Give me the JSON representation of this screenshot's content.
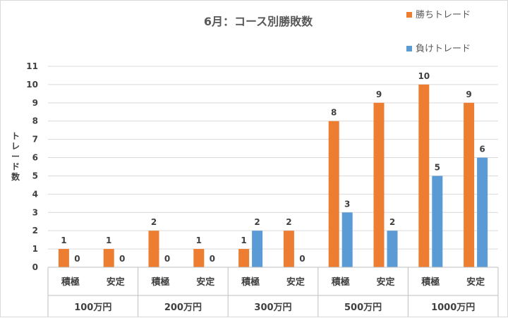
{
  "chart_data": {
    "type": "bar",
    "title": "6月：コース別勝敗数",
    "ylabel": "トレード数",
    "xlabel": "",
    "ylim": [
      0,
      11
    ],
    "yticks": [
      0,
      1,
      2,
      3,
      4,
      5,
      6,
      7,
      8,
      9,
      10,
      11
    ],
    "grid": true,
    "legend_position": "top-right",
    "categories": [
      "積極",
      "安定",
      "積極",
      "安定",
      "積極",
      "安定",
      "積極",
      "安定",
      "積極",
      "安定"
    ],
    "groups": [
      {
        "label": "100万円",
        "span": 2
      },
      {
        "label": "200万円",
        "span": 2
      },
      {
        "label": "300万円",
        "span": 2
      },
      {
        "label": "500万円",
        "span": 2
      },
      {
        "label": "1000万円",
        "span": 2
      }
    ],
    "series": [
      {
        "name": "勝ちトレード",
        "color": "#ed7d31",
        "values": [
          1,
          1,
          2,
          1,
          1,
          2,
          8,
          9,
          10,
          9
        ]
      },
      {
        "name": "負けトレード",
        "color": "#5b9bd5",
        "values": [
          0,
          0,
          0,
          0,
          2,
          0,
          3,
          2,
          5,
          6
        ]
      }
    ]
  }
}
